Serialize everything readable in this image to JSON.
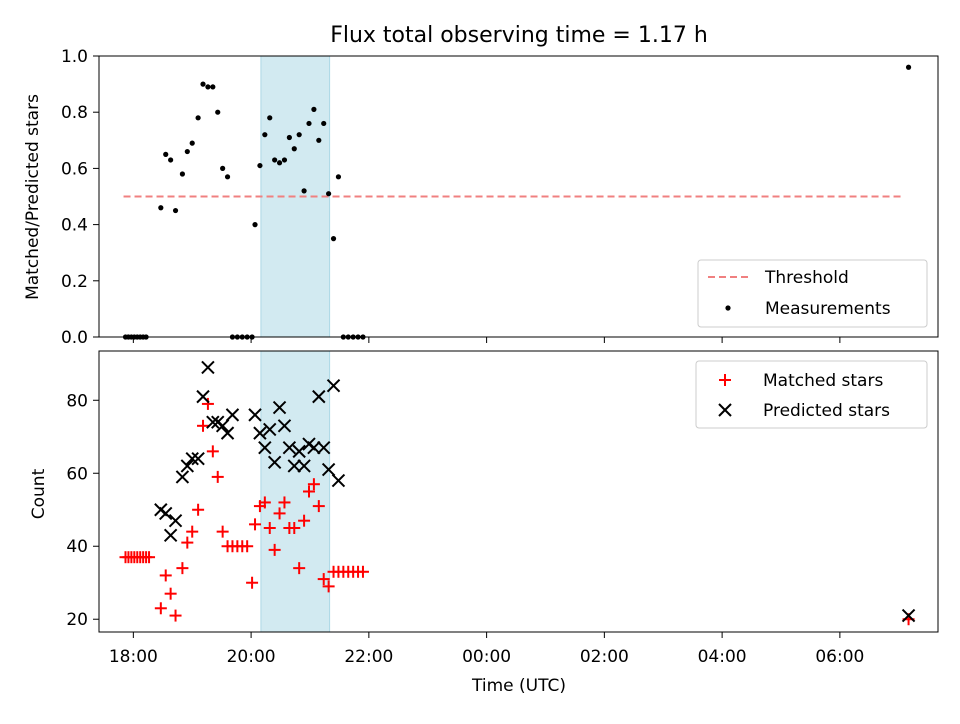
{
  "chart_data": [
    {
      "type": "scatter",
      "title": "Flux total observing time = 1.17 h",
      "xlabel": "",
      "ylabel": "Matched/Predicted stars",
      "xlim": [
        "17:25",
        "07:40"
      ],
      "ylim": [
        0,
        1.0
      ],
      "yticks": [
        0.0,
        0.2,
        0.4,
        0.6,
        0.8,
        1.0
      ],
      "ytick_labels": [
        "0.0",
        "0.2",
        "0.4",
        "0.6",
        "0.8",
        "1.0"
      ],
      "shaded_span": {
        "x": [
          "20:10",
          "21:20"
        ],
        "color": "#add8e6"
      },
      "legend_position": "lower-right",
      "series": [
        {
          "name": "Threshold",
          "kind": "dashed-line",
          "color": "#f08080",
          "x": [
            "17:50",
            "07:05"
          ],
          "y": [
            0.5,
            0.5
          ]
        },
        {
          "name": "Measurements",
          "kind": "dot",
          "color": "#000000",
          "x": [
            "17:52",
            "17:55",
            "17:58",
            "18:01",
            "18:04",
            "18:07",
            "18:10",
            "18:13",
            "18:28",
            "18:33",
            "18:38",
            "18:43",
            "18:50",
            "18:55",
            "19:00",
            "19:06",
            "19:11",
            "19:16",
            "19:21",
            "19:26",
            "19:31",
            "19:36",
            "19:41",
            "19:46",
            "19:51",
            "19:56",
            "20:01",
            "20:04",
            "20:09",
            "20:14",
            "20:19",
            "20:24",
            "20:29",
            "20:34",
            "20:39",
            "20:44",
            "20:49",
            "20:54",
            "20:59",
            "21:04",
            "21:09",
            "21:14",
            "21:19",
            "21:24",
            "21:29",
            "21:34",
            "21:39",
            "21:44",
            "21:49",
            "21:54",
            "07:10"
          ],
          "y": [
            0,
            0,
            0,
            0,
            0,
            0,
            0,
            0,
            0.46,
            0.65,
            0.63,
            0.45,
            0.58,
            0.66,
            0.69,
            0.78,
            0.9,
            0.89,
            0.89,
            0.8,
            0.6,
            0.57,
            0,
            0,
            0,
            0,
            0,
            0.4,
            0.61,
            0.72,
            0.78,
            0.63,
            0.62,
            0.63,
            0.71,
            0.67,
            0.72,
            0.52,
            0.76,
            0.81,
            0.7,
            0.76,
            0.51,
            0.35,
            0.57,
            0,
            0,
            0,
            0,
            0,
            0.96
          ]
        }
      ]
    },
    {
      "type": "scatter",
      "title": "",
      "xlabel": "Time (UTC)",
      "ylabel": "Count",
      "xlim": [
        "17:25",
        "07:40"
      ],
      "ylim": [
        16.5,
        93.5
      ],
      "yticks": [
        20,
        40,
        60,
        80
      ],
      "ytick_labels": [
        "20",
        "40",
        "60",
        "80"
      ],
      "xticks": [
        "18:00",
        "20:00",
        "22:00",
        "00:00",
        "02:00",
        "04:00",
        "06:00"
      ],
      "xtick_labels": [
        "18:00",
        "20:00",
        "22:00",
        "00:00",
        "02:00",
        "04:00",
        "06:00"
      ],
      "shaded_span": {
        "x": [
          "20:10",
          "21:20"
        ],
        "color": "#add8e6"
      },
      "legend_position": "upper-right",
      "series": [
        {
          "name": "Matched stars",
          "kind": "plus",
          "color": "#ff0000",
          "x": [
            "17:52",
            "17:55",
            "17:58",
            "18:01",
            "18:04",
            "18:07",
            "18:10",
            "18:13",
            "18:16",
            "18:28",
            "18:33",
            "18:38",
            "18:43",
            "18:50",
            "18:55",
            "19:00",
            "19:06",
            "19:11",
            "19:16",
            "19:21",
            "19:26",
            "19:31",
            "19:36",
            "19:41",
            "19:46",
            "19:51",
            "19:56",
            "20:01",
            "20:04",
            "20:09",
            "20:14",
            "20:19",
            "20:24",
            "20:29",
            "20:34",
            "20:39",
            "20:44",
            "20:49",
            "20:54",
            "20:59",
            "21:04",
            "21:09",
            "21:14",
            "21:19",
            "21:24",
            "21:29",
            "21:34",
            "21:39",
            "21:44",
            "21:49",
            "21:54",
            "07:10"
          ],
          "y": [
            37,
            37,
            37,
            37,
            37,
            37,
            37,
            37,
            37,
            23,
            32,
            27,
            21,
            34,
            41,
            44,
            50,
            73,
            79,
            66,
            59,
            44,
            40,
            40,
            40,
            40,
            40,
            30,
            46,
            51,
            52,
            45,
            39,
            49,
            52,
            45,
            45,
            34,
            47,
            55,
            57,
            51,
            31,
            29,
            33,
            33,
            33,
            33,
            33,
            33,
            33,
            20
          ]
        },
        {
          "name": "Predicted stars",
          "kind": "x",
          "color": "#000000",
          "x": [
            "18:28",
            "18:33",
            "18:38",
            "18:43",
            "18:50",
            "18:55",
            "19:00",
            "19:06",
            "19:11",
            "19:16",
            "19:21",
            "19:26",
            "19:31",
            "19:36",
            "19:41",
            "20:04",
            "20:09",
            "20:14",
            "20:19",
            "20:24",
            "20:29",
            "20:34",
            "20:39",
            "20:44",
            "20:49",
            "20:54",
            "20:59",
            "21:04",
            "21:09",
            "21:14",
            "21:19",
            "21:24",
            "21:29",
            "07:10"
          ],
          "y": [
            50,
            49,
            43,
            47,
            59,
            62,
            64,
            64,
            81,
            89,
            74,
            74,
            73,
            71,
            76,
            76,
            71,
            67,
            72,
            63,
            78,
            73,
            67,
            62,
            66,
            62,
            68,
            67,
            81,
            67,
            61,
            84,
            58,
            21
          ]
        }
      ]
    }
  ]
}
